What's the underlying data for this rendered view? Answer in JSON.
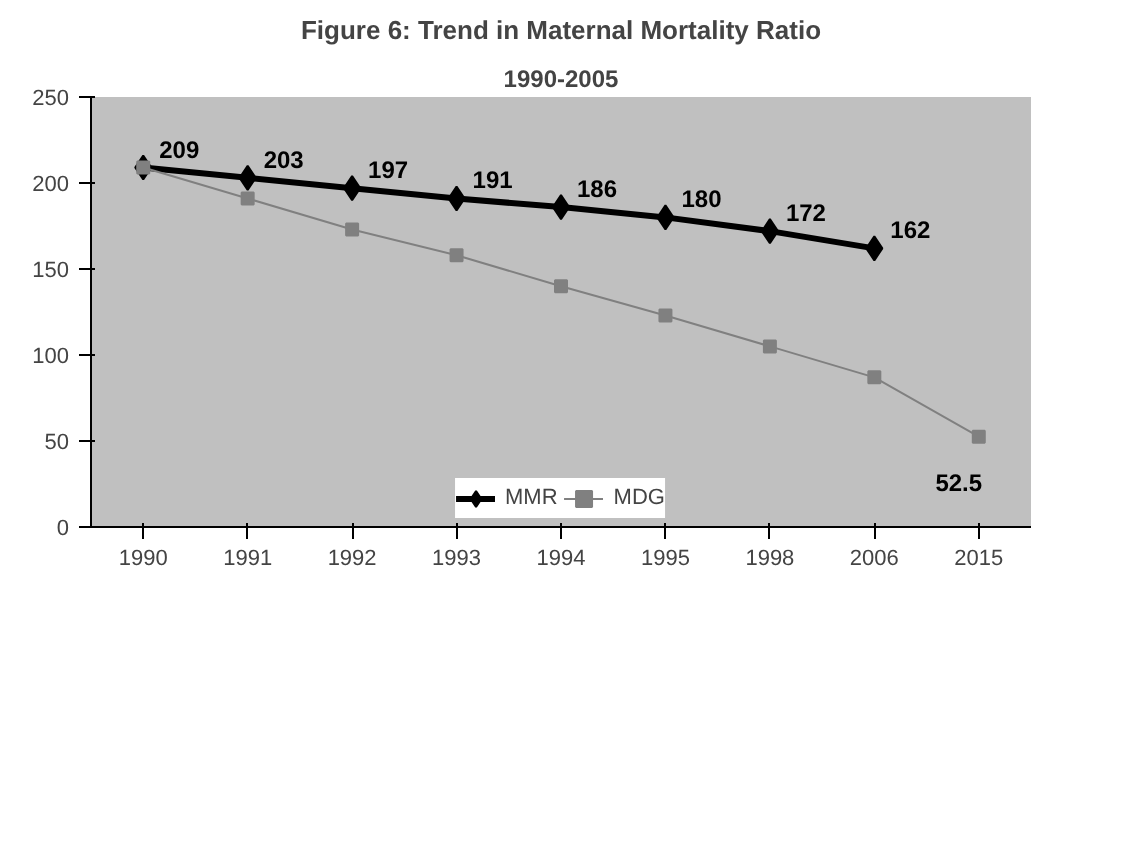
{
  "chart_data": {
    "type": "line",
    "title": "Figure 6: Trend in Maternal Mortality Ratio",
    "subtitle": "1990-2005",
    "categories": [
      "1990",
      "1991",
      "1992",
      "1993",
      "1994",
      "1995",
      "1998",
      "2006",
      "2015"
    ],
    "series": [
      {
        "name": "MMR",
        "color": "#000000",
        "marker": "diamond",
        "values": [
          209,
          203,
          197,
          191,
          186,
          180,
          172,
          162,
          null
        ],
        "value_labels": [
          "209",
          "203",
          "197",
          "191",
          "186",
          "180",
          "172",
          "162",
          null
        ]
      },
      {
        "name": "MDG",
        "color": "#808080",
        "marker": "square",
        "values": [
          209,
          191,
          173,
          158,
          140,
          123,
          105,
          87,
          52.5
        ],
        "value_labels": [
          null,
          null,
          null,
          null,
          null,
          null,
          null,
          null,
          "52.5"
        ]
      }
    ],
    "ylim": [
      0,
      250
    ],
    "yticks": [
      0,
      50,
      100,
      150,
      200,
      250
    ],
    "grid": false,
    "legend": "bottom",
    "line_style": "solid"
  }
}
